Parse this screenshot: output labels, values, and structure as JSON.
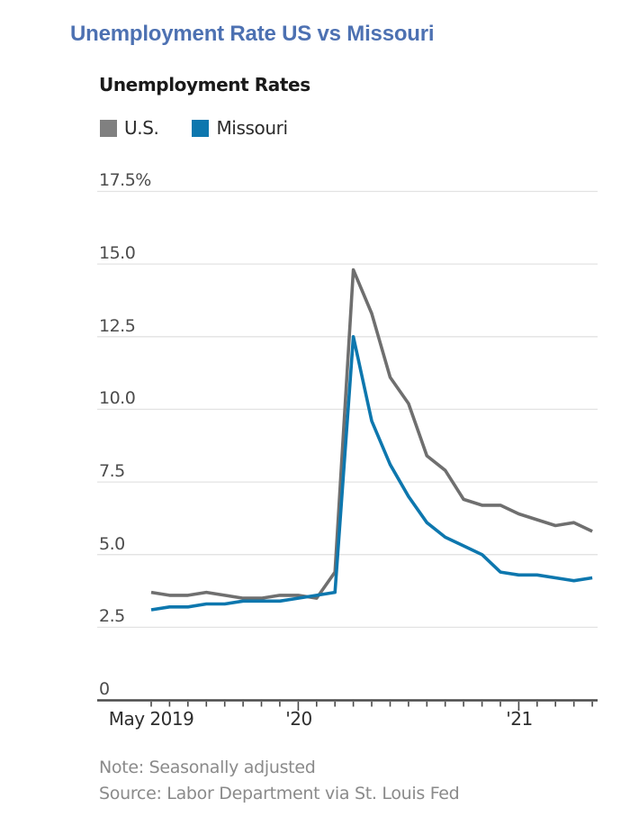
{
  "header": {
    "title": "Unemployment Rate US vs Missouri"
  },
  "chart": {
    "subtitle": "Unemployment Rates",
    "legend": [
      {
        "label": "U.S."
      },
      {
        "label": "Missouri"
      }
    ]
  },
  "axes": {
    "y_tick_labels": [
      "17.5%",
      "15.0",
      "12.5",
      "10.0",
      "7.5",
      "5.0",
      "2.5",
      "0"
    ],
    "x_tick_labels": [
      "May 2019",
      "'20",
      "'21"
    ]
  },
  "footer": {
    "note": "Note: Seasonally adjusted",
    "source": "Source: Labor Department via St. Louis Fed"
  },
  "colors": {
    "title": "#4d71b2",
    "us_line": "#6f6f6f",
    "us_swatch": "#808080",
    "missouri_line": "#0d77ae",
    "missouri_swatch": "#0d77ae",
    "grid": "#e3e3e3",
    "axis": "#4a4a4a",
    "footer_text": "#8a8a8a"
  },
  "chart_data": {
    "type": "line",
    "title": "Unemployment Rates",
    "unit": "percent",
    "x": [
      "May 2019",
      "Jun 2019",
      "Jul 2019",
      "Aug 2019",
      "Sep 2019",
      "Oct 2019",
      "Nov 2019",
      "Dec 2019",
      "Jan 2020",
      "Feb 2020",
      "Mar 2020",
      "Apr 2020",
      "May 2020",
      "Jun 2020",
      "Jul 2020",
      "Aug 2020",
      "Sep 2020",
      "Oct 2020",
      "Nov 2020",
      "Dec 2020",
      "Jan 2021",
      "Feb 2021",
      "Mar 2021",
      "Apr 2021",
      "May 2021"
    ],
    "series": [
      {
        "name": "U.S.",
        "values": [
          3.7,
          3.6,
          3.6,
          3.7,
          3.6,
          3.5,
          3.5,
          3.6,
          3.6,
          3.5,
          4.4,
          14.8,
          13.3,
          11.1,
          10.2,
          8.4,
          7.9,
          6.9,
          6.7,
          6.7,
          6.4,
          6.2,
          6.0,
          6.1,
          5.8
        ]
      },
      {
        "name": "Missouri",
        "values": [
          3.1,
          3.2,
          3.2,
          3.3,
          3.3,
          3.4,
          3.4,
          3.4,
          3.5,
          3.6,
          3.7,
          12.5,
          9.6,
          8.1,
          7.0,
          6.1,
          5.6,
          5.3,
          5.0,
          4.4,
          4.3,
          4.3,
          4.2,
          4.1,
          4.2
        ]
      }
    ],
    "ylim": [
      0,
      17.5
    ],
    "y_ticks": [
      0,
      2.5,
      5.0,
      7.5,
      10.0,
      12.5,
      15.0,
      17.5
    ],
    "x_major_ticks": [
      "Jan 2020",
      "Jan 2021"
    ],
    "grid": "horizontal",
    "legend_position": "top-left"
  }
}
